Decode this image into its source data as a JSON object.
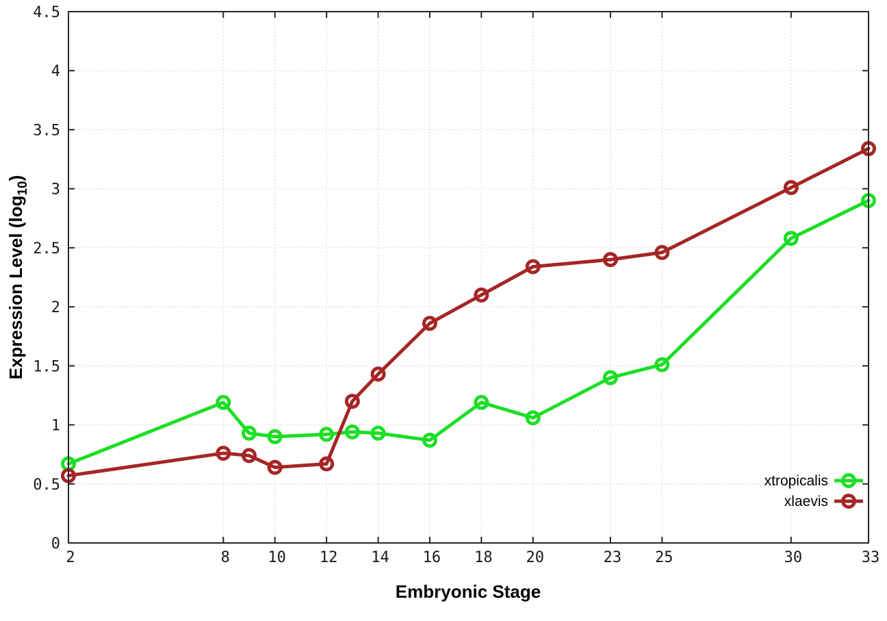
{
  "chart_data": {
    "type": "line",
    "title": "",
    "xlabel": "Embryonic Stage",
    "ylabel": "Expression Level (log10)",
    "ylabel_parts": {
      "main": "Expression Level (log",
      "sub": "10",
      "end": ")"
    },
    "xlim": [
      2,
      33
    ],
    "ylim": [
      0,
      4.5
    ],
    "xticks": [
      2,
      8,
      10,
      12,
      14,
      16,
      18,
      20,
      23,
      25,
      30,
      33
    ],
    "yticks": [
      0,
      0.5,
      1,
      1.5,
      2,
      2.5,
      3,
      3.5,
      4,
      4.5
    ],
    "grid": true,
    "legend_position": "inside right bottom",
    "x": [
      2,
      8,
      9,
      10,
      12,
      13,
      14,
      16,
      18,
      20,
      23,
      25,
      30,
      33
    ],
    "series": [
      {
        "name": "xtropicalis",
        "color": "#1dde26",
        "marker": "open-circle",
        "values": [
          0.67,
          1.19,
          0.93,
          0.9,
          0.92,
          0.94,
          0.93,
          0.87,
          1.19,
          1.06,
          1.4,
          1.51,
          2.58,
          2.9
        ]
      },
      {
        "name": "xlaevis",
        "color": "#a52626",
        "marker": "open-circle",
        "values": [
          0.57,
          0.76,
          0.74,
          0.64,
          0.67,
          1.2,
          1.43,
          1.86,
          2.1,
          2.34,
          2.4,
          2.46,
          3.01,
          3.34
        ]
      }
    ]
  },
  "style": {
    "background": "#ffffff",
    "grid_color": "#c9c9c9",
    "axis_color": "#262626",
    "text_color": "#000000",
    "line_width": 5,
    "marker_radius": 8.5,
    "marker_stroke": 5
  }
}
